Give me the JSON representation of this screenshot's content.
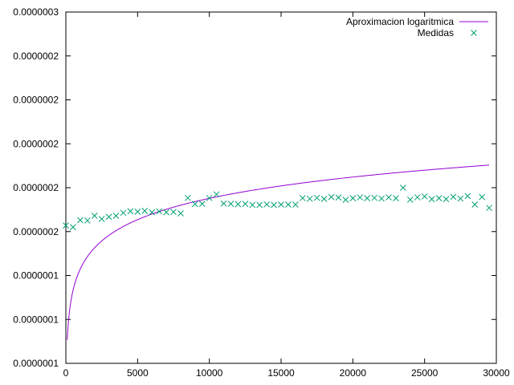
{
  "chart_data": {
    "type": "scatter",
    "xlim": [
      0,
      30000
    ],
    "ylim": [
      1e-07,
      3e-07
    ],
    "x_ticks": [
      {
        "value": 0,
        "label": "0"
      },
      {
        "value": 5000,
        "label": "5000"
      },
      {
        "value": 10000,
        "label": "10000"
      },
      {
        "value": 15000,
        "label": "15000"
      },
      {
        "value": 20000,
        "label": "20000"
      },
      {
        "value": 25000,
        "label": "25000"
      },
      {
        "value": 30000,
        "label": "30000"
      }
    ],
    "y_ticks": [
      {
        "value": 1e-07,
        "label": "0.0000001"
      },
      {
        "value": 1.25e-07,
        "label": "0.0000001"
      },
      {
        "value": 1.5e-07,
        "label": "0.0000001"
      },
      {
        "value": 1.75e-07,
        "label": "0.0000002"
      },
      {
        "value": 2e-07,
        "label": "0.0000002"
      },
      {
        "value": 2.25e-07,
        "label": "0.0000002"
      },
      {
        "value": 2.5e-07,
        "label": "0.0000002"
      },
      {
        "value": 2.75e-07,
        "label": "0.0000002"
      },
      {
        "value": 3e-07,
        "label": "0.0000003"
      }
    ],
    "grid": false,
    "legend_position": "top-right",
    "series": [
      {
        "name": "Aproximacion logaritmica",
        "type": "line",
        "color": "#9400d3",
        "model": "log",
        "x": [
          100,
          200,
          300,
          500,
          700,
          1000,
          1500,
          2000,
          3000,
          4000,
          5000,
          6000,
          8000,
          10000,
          12000,
          15000,
          18000,
          20000,
          22000,
          25000,
          28000,
          29500
        ],
        "y": [
          1.134e-07,
          1.255e-07,
          1.325e-07,
          1.415e-07,
          1.474e-07,
          1.536e-07,
          1.607e-07,
          1.658e-07,
          1.729e-07,
          1.779e-07,
          1.818e-07,
          1.85e-07,
          1.9e-07,
          1.939e-07,
          1.971e-07,
          2.01e-07,
          2.042e-07,
          2.06e-07,
          2.077e-07,
          2.1e-07,
          2.12e-07,
          2.129e-07
        ]
      },
      {
        "name": "Medidas",
        "type": "scatter",
        "color": "#009e73",
        "marker": "x",
        "x": [
          0,
          500,
          1000,
          1500,
          2000,
          2500,
          3000,
          3500,
          4000,
          4500,
          5000,
          5500,
          6000,
          6500,
          7000,
          7500,
          8000,
          8500,
          9000,
          9500,
          10000,
          10500,
          11000,
          11500,
          12000,
          12500,
          13000,
          13500,
          14000,
          14500,
          15000,
          15500,
          16000,
          16500,
          17000,
          17500,
          18000,
          18500,
          19000,
          19500,
          20000,
          20500,
          21000,
          21500,
          22000,
          22500,
          23000,
          23500,
          24000,
          24500,
          25000,
          25500,
          26000,
          26500,
          27000,
          27500,
          28000,
          28500,
          29000,
          29500
        ],
        "y": [
          1.785e-07,
          1.775e-07,
          1.815e-07,
          1.813e-07,
          1.84e-07,
          1.822e-07,
          1.834e-07,
          1.84e-07,
          1.857e-07,
          1.866e-07,
          1.863e-07,
          1.868e-07,
          1.86e-07,
          1.865e-07,
          1.86e-07,
          1.862e-07,
          1.854e-07,
          1.942e-07,
          1.907e-07,
          1.908e-07,
          1.941e-07,
          1.962e-07,
          1.91e-07,
          1.908e-07,
          1.906e-07,
          1.908e-07,
          1.902e-07,
          1.902e-07,
          1.905e-07,
          1.902e-07,
          1.904e-07,
          1.904e-07,
          1.904e-07,
          1.941e-07,
          1.937e-07,
          1.942e-07,
          1.936e-07,
          1.947e-07,
          1.944e-07,
          1.931e-07,
          1.94e-07,
          1.945e-07,
          1.94e-07,
          1.942e-07,
          1.938e-07,
          1.945e-07,
          1.94e-07,
          2e-07,
          1.932e-07,
          1.945e-07,
          1.95e-07,
          1.935e-07,
          1.94e-07,
          1.935e-07,
          1.948e-07,
          1.938e-07,
          1.952e-07,
          1.904e-07,
          1.947e-07,
          1.885e-07
        ]
      }
    ]
  }
}
